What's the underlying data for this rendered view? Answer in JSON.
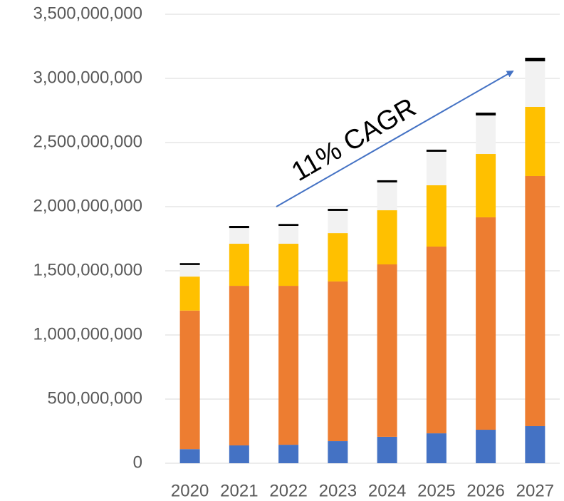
{
  "chart_data": {
    "type": "bar",
    "stacked": true,
    "annotation": "11% CAGR",
    "categories": [
      "2020",
      "2021",
      "2022",
      "2023",
      "2024",
      "2025",
      "2026",
      "2027"
    ],
    "series": [
      {
        "color": "#4472c4",
        "values": [
          110000000,
          139000000,
          144000000,
          172000000,
          206000000,
          233000000,
          261000000,
          289000000
        ]
      },
      {
        "color": "#ed7d31",
        "values": [
          1080000000,
          1244000000,
          1239000000,
          1245000000,
          1344000000,
          1456000000,
          1656000000,
          1950000000
        ]
      },
      {
        "color": "#ffc000",
        "values": [
          265000000,
          328000000,
          328000000,
          377000000,
          422000000,
          478000000,
          494000000,
          539000000
        ]
      },
      {
        "color": "#f2f2f2",
        "values": [
          90000000,
          122000000,
          139000000,
          173000000,
          217000000,
          261000000,
          300000000,
          355000000
        ]
      },
      {
        "color": "#000000",
        "values": [
          15000000,
          17000000,
          15000000,
          16000000,
          17000000,
          16000000,
          22000000,
          28000000
        ]
      }
    ],
    "ylim": [
      0,
      3500000000
    ],
    "yticks": [
      0,
      {
        "value": 500000000,
        "label": "500,000,000"
      },
      {
        "value": 1000000000,
        "label": "1,000,000,000"
      },
      {
        "value": 1500000000,
        "label": "1,500,000,000"
      },
      {
        "value": 2000000000,
        "label": "2,000,000,000"
      },
      {
        "value": 2500000000,
        "label": "2,500,000,000"
      },
      {
        "value": 3000000000,
        "label": "3,000,000,000"
      },
      {
        "value": 3500000000,
        "label": "3,500,000,000"
      }
    ],
    "grid": true
  }
}
